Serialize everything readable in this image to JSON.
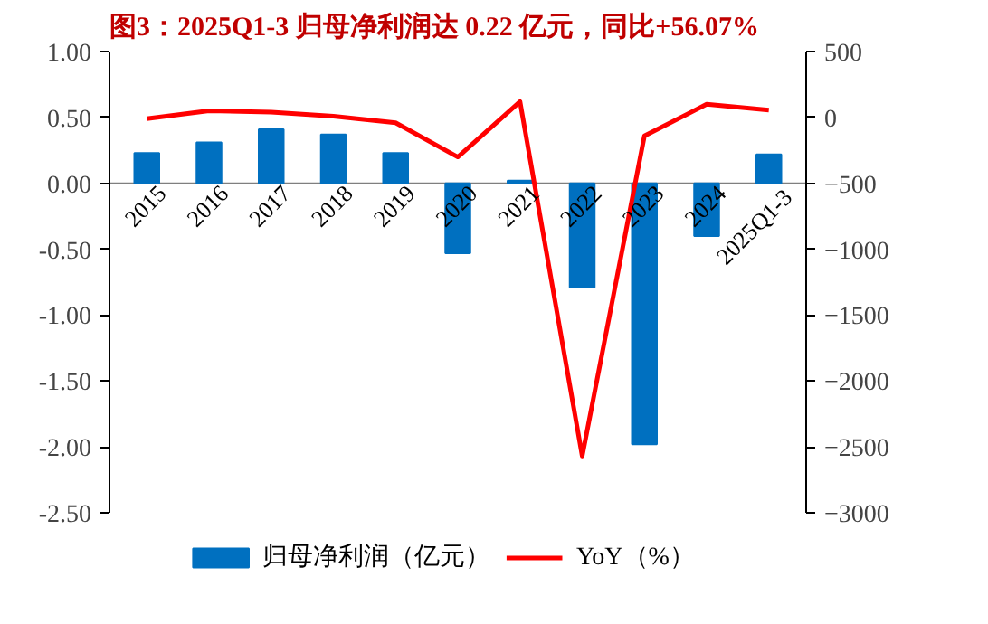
{
  "chart_data": {
    "type": "bar",
    "title": "图3：2025Q1-3 归母净利润达 0.22 亿元，同比+56.07%",
    "categories": [
      "2015",
      "2016",
      "2017",
      "2018",
      "2019",
      "2020",
      "2021",
      "2022",
      "2023",
      "2024",
      "2025Q1-3"
    ],
    "series": [
      {
        "name": "归母净利润（亿元）",
        "color": "#0070c0",
        "values": [
          0.23,
          0.31,
          0.41,
          0.37,
          0.23,
          -0.53,
          0.02,
          -0.79,
          -1.98,
          -0.4,
          0.22
        ]
      },
      {
        "name": "YoY（%）",
        "type": "line",
        "axis": "y2",
        "color": "#ff0000",
        "values": [
          -10,
          50,
          40,
          10,
          -40,
          -300,
          120,
          -2570,
          -140,
          100,
          56.07
        ]
      }
    ],
    "ylim": [
      -2.5,
      1.0
    ],
    "yticks": [
      {
        "value": 1.0,
        "label": "1.00"
      },
      {
        "value": 0.5,
        "label": "0.50"
      },
      {
        "value": 0.0,
        "label": "0.00"
      },
      {
        "value": -0.5,
        "label": "-0.50"
      },
      {
        "value": -1.0,
        "label": "-1.00"
      },
      {
        "value": -1.5,
        "label": "-1.50"
      },
      {
        "value": -2.0,
        "label": "-2.00"
      },
      {
        "value": -2.5,
        "label": "-2.50"
      }
    ],
    "y2lim": [
      -3000,
      500
    ],
    "y2ticks": [
      500,
      0,
      -500,
      -1000,
      -1500,
      -2000,
      -2500,
      -3000
    ],
    "grid": false,
    "legend": "bottom",
    "line_style": "solid",
    "marker": "none"
  }
}
